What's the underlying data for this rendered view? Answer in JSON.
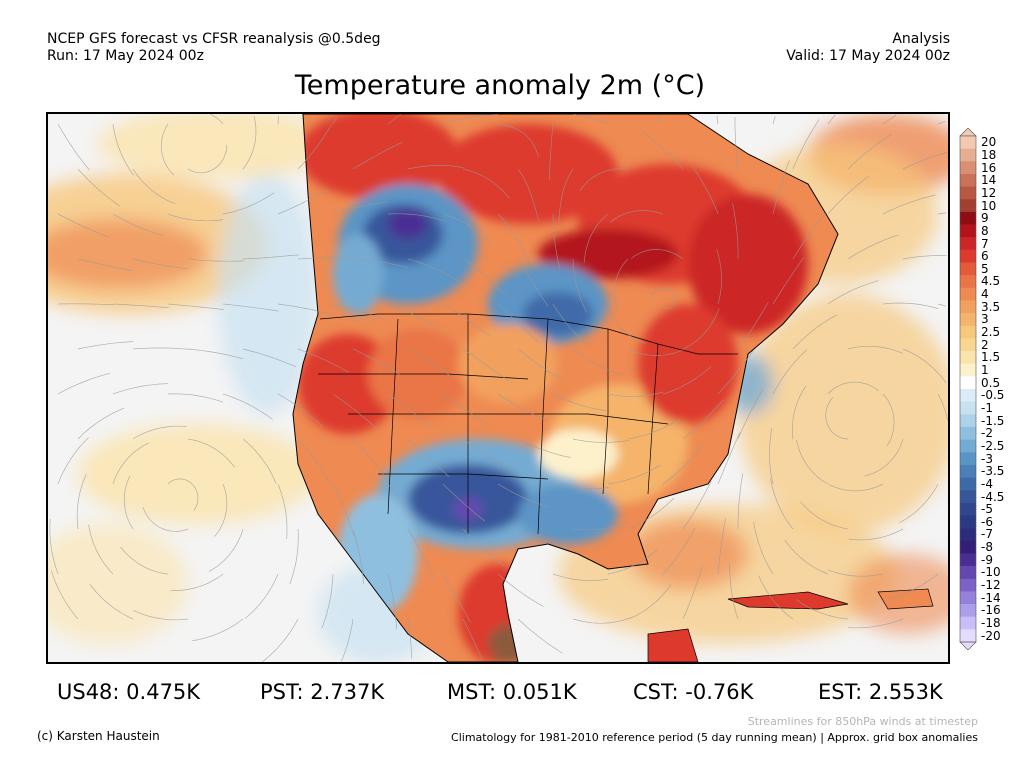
{
  "header": {
    "line1_left": "NCEP GFS forecast vs CFSR reanalysis @0.5deg",
    "line2_left": "Run: 17 May 2024 00z",
    "line1_right": "Analysis",
    "line2_right": "Valid: 17 May 2024 00z"
  },
  "title": "Temperature anomaly 2m (°C)",
  "colorbar": {
    "labels": [
      "20",
      "18",
      "16",
      "14",
      "12",
      "10",
      "9",
      "8",
      "7",
      "6",
      "5",
      "4.5",
      "4",
      "3.5",
      "3",
      "2.5",
      "2",
      "1.5",
      "1",
      "0.5",
      "-0.5",
      "-1",
      "-1.5",
      "-2",
      "-2.5",
      "-3",
      "-3.5",
      "-4",
      "-4.5",
      "-5",
      "-6",
      "-7",
      "-8",
      "-9",
      "-10",
      "-12",
      "-14",
      "-16",
      "-18",
      "-20"
    ],
    "colors": [
      "#f2c9b1",
      "#e6ae93",
      "#d98f73",
      "#c97259",
      "#b85843",
      "#a33f31",
      "#8d0d13",
      "#b3141b",
      "#cc2727",
      "#dd3a2d",
      "#e45a3b",
      "#ea7446",
      "#ee8a52",
      "#f2a05d",
      "#f5b46b",
      "#f7c77c",
      "#f9d690",
      "#fbe4ab",
      "#fdf1cc",
      "#ffffff",
      "#dcecf7",
      "#c7e1f1",
      "#acd1e9",
      "#8fbfdf",
      "#74abd3",
      "#5b95c6",
      "#4a7fb8",
      "#3f6aa9",
      "#37579b",
      "#30478e",
      "#2b3a85",
      "#2c2b7e",
      "#351f7a",
      "#4b2e93",
      "#6448b0",
      "#7c62c6",
      "#9580da",
      "#ad9eea",
      "#c9bef6",
      "#e5dcfd"
    ]
  },
  "map": {
    "colors": {
      "ocean_neutral": "#f4f4f4",
      "warm1": "#fbe4ab",
      "warm2": "#f7c77c",
      "warm3": "#ee8a52",
      "warm4": "#dd3a2d",
      "warm5": "#b3141b",
      "cool1": "#c7e1f1",
      "cool2": "#74abd3",
      "cool3": "#3f6aa9",
      "cool4": "#2b3a85",
      "cool5": "#6448b0",
      "brown": "#8d5a3c",
      "streamline": "#9a9a9a"
    }
  },
  "stats": {
    "us48": "US48: 0.475K",
    "pst": "PST: 2.737K",
    "mst": "MST: 0.051K",
    "cst": "CST: -0.76K",
    "est": "EST: 2.553K"
  },
  "footer": {
    "credit": "(c) Karsten Haustein",
    "streamlines_note": "Streamlines for 850hPa winds at timestep",
    "climatology_note": "Climatology for 1981-2010 reference period (5 day running mean) | Approx. grid box anomalies"
  }
}
